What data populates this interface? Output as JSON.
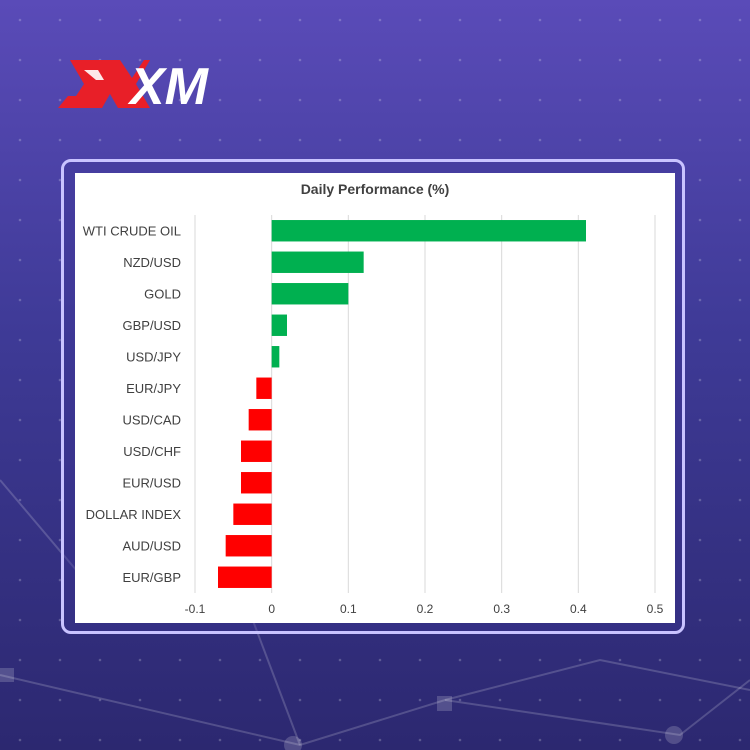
{
  "brand": {
    "name": "XM"
  },
  "chart_data": {
    "type": "bar",
    "orientation": "horizontal",
    "title": "Daily Performance (%)",
    "categories": [
      "WTI CRUDE OIL",
      "NZD/USD",
      "GOLD",
      "GBP/USD",
      "USD/JPY",
      "EUR/JPY",
      "USD/CAD",
      "USD/CHF",
      "EUR/USD",
      "DOLLAR INDEX",
      "AUD/USD",
      "EUR/GBP"
    ],
    "values": [
      0.41,
      0.12,
      0.1,
      0.02,
      0.01,
      -0.02,
      -0.03,
      -0.04,
      -0.04,
      -0.05,
      -0.06,
      -0.07
    ],
    "xlim": [
      -0.1,
      0.5
    ],
    "xticks": [
      "-0.1",
      "0",
      "0.1",
      "0.2",
      "0.3",
      "0.4",
      "0.5"
    ],
    "grid": true,
    "colors": {
      "positive": "#00b050",
      "negative": "#ff0000",
      "grid": "#d9d9d9",
      "text": "#404040"
    }
  }
}
